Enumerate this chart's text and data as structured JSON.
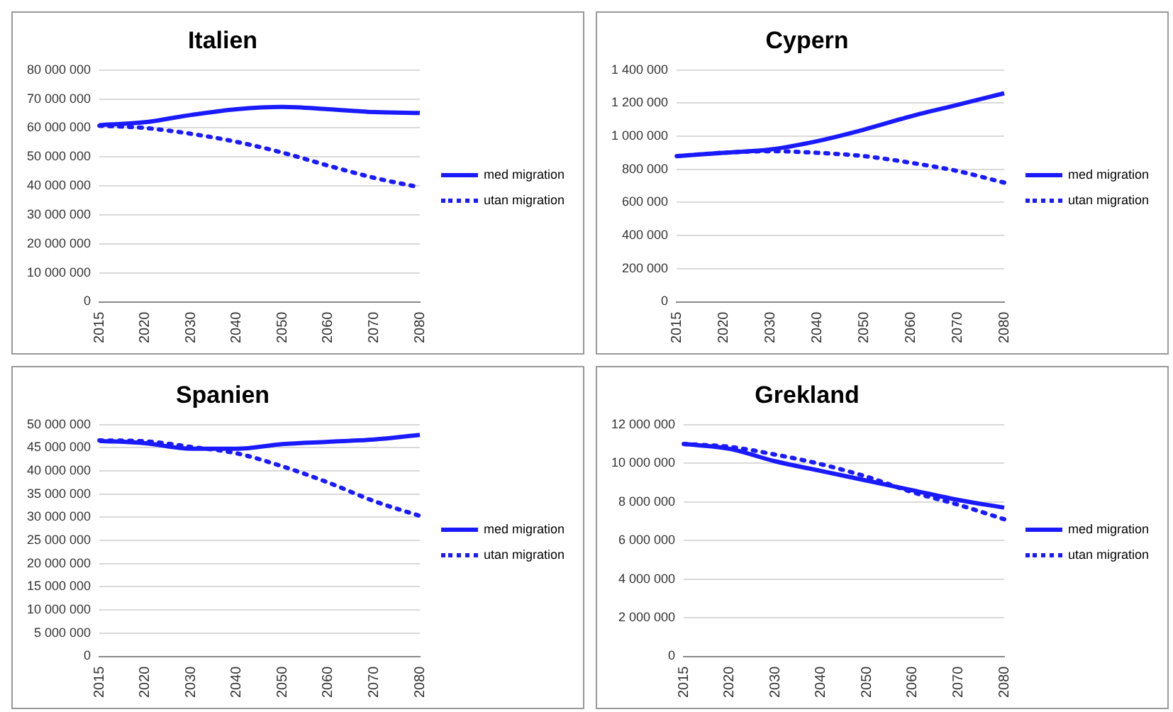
{
  "chart_data": [
    {
      "type": "line",
      "title": "Italien",
      "categories": [
        "2015",
        "2020",
        "2030",
        "2040",
        "2050",
        "2060",
        "2070",
        "2080"
      ],
      "series": [
        {
          "name": "med migration",
          "color": "#1a1aff",
          "line_style": "solid",
          "values": [
            61000000,
            62000000,
            64500000,
            66500000,
            67300000,
            66500000,
            65500000,
            65200000
          ]
        },
        {
          "name": "utan migration",
          "color": "#1a1aff",
          "line_style": "dotted",
          "values": [
            60800000,
            60000000,
            58000000,
            55200000,
            51500000,
            47000000,
            42800000,
            39500000
          ]
        }
      ],
      "ylim": [
        0,
        80000000
      ],
      "yticks": [
        {
          "value": 0,
          "label": "0"
        },
        {
          "value": 10000000,
          "label": "10 000 000"
        },
        {
          "value": 20000000,
          "label": "20 000 000"
        },
        {
          "value": 30000000,
          "label": "30 000 000"
        },
        {
          "value": 40000000,
          "label": "40 000 000"
        },
        {
          "value": 50000000,
          "label": "50 000 000"
        },
        {
          "value": 60000000,
          "label": "60 000 000"
        },
        {
          "value": 70000000,
          "label": "70 000 000"
        },
        {
          "value": 80000000,
          "label": "80 000 000"
        }
      ],
      "grid": "y",
      "legend": "right",
      "marker": "none"
    },
    {
      "type": "line",
      "title": "Cypern",
      "categories": [
        "2015",
        "2020",
        "2030",
        "2040",
        "2050",
        "2060",
        "2070",
        "2080"
      ],
      "series": [
        {
          "name": "med migration",
          "color": "#1a1aff",
          "line_style": "solid",
          "values": [
            880000,
            900000,
            920000,
            970000,
            1040000,
            1120000,
            1190000,
            1260000
          ]
        },
        {
          "name": "utan migration",
          "color": "#1a1aff",
          "line_style": "dotted",
          "values": [
            880000,
            900000,
            910000,
            900000,
            880000,
            840000,
            790000,
            720000
          ]
        }
      ],
      "ylim": [
        0,
        1400000
      ],
      "yticks": [
        {
          "value": 0,
          "label": "0"
        },
        {
          "value": 200000,
          "label": "200 000"
        },
        {
          "value": 400000,
          "label": "400 000"
        },
        {
          "value": 600000,
          "label": "600 000"
        },
        {
          "value": 800000,
          "label": "800 000"
        },
        {
          "value": 1000000,
          "label": "1 000 000"
        },
        {
          "value": 1200000,
          "label": "1 200 000"
        },
        {
          "value": 1400000,
          "label": "1 400 000"
        }
      ],
      "grid": "y",
      "legend": "right",
      "marker": "none"
    },
    {
      "type": "line",
      "title": "Spanien",
      "categories": [
        "2015",
        "2020",
        "2030",
        "2040",
        "2050",
        "2060",
        "2070",
        "2080"
      ],
      "series": [
        {
          "name": "med migration",
          "color": "#1a1aff",
          "line_style": "solid",
          "values": [
            46500000,
            46000000,
            44800000,
            44800000,
            45800000,
            46300000,
            46800000,
            47800000
          ]
        },
        {
          "name": "utan migration",
          "color": "#1a1aff",
          "line_style": "dotted",
          "values": [
            46600000,
            46400000,
            45200000,
            43800000,
            41000000,
            37500000,
            33500000,
            30300000
          ]
        }
      ],
      "ylim": [
        0,
        50000000
      ],
      "yticks": [
        {
          "value": 0,
          "label": "0"
        },
        {
          "value": 5000000,
          "label": "5 000 000"
        },
        {
          "value": 10000000,
          "label": "10 000 000"
        },
        {
          "value": 15000000,
          "label": "15 000 000"
        },
        {
          "value": 20000000,
          "label": "20 000 000"
        },
        {
          "value": 25000000,
          "label": "25 000 000"
        },
        {
          "value": 30000000,
          "label": "30 000 000"
        },
        {
          "value": 35000000,
          "label": "35 000 000"
        },
        {
          "value": 40000000,
          "label": "40 000 000"
        },
        {
          "value": 45000000,
          "label": "45 000 000"
        },
        {
          "value": 50000000,
          "label": "50 000 000"
        }
      ],
      "grid": "y",
      "legend": "right",
      "marker": "none"
    },
    {
      "type": "line",
      "title": "Grekland",
      "categories": [
        "2015",
        "2020",
        "2030",
        "2040",
        "2050",
        "2060",
        "2070",
        "2080"
      ],
      "series": [
        {
          "name": "med migration",
          "color": "#1a1aff",
          "line_style": "solid",
          "values": [
            11000000,
            10750000,
            10100000,
            9600000,
            9100000,
            8600000,
            8100000,
            7700000
          ]
        },
        {
          "name": "utan migration",
          "color": "#1a1aff",
          "line_style": "dotted",
          "values": [
            11000000,
            10850000,
            10450000,
            9950000,
            9300000,
            8500000,
            7850000,
            7100000
          ]
        }
      ],
      "ylim": [
        0,
        12000000
      ],
      "yticks": [
        {
          "value": 0,
          "label": "0"
        },
        {
          "value": 2000000,
          "label": "2 000 000"
        },
        {
          "value": 4000000,
          "label": "4 000 000"
        },
        {
          "value": 6000000,
          "label": "6 000 000"
        },
        {
          "value": 8000000,
          "label": "8 000 000"
        },
        {
          "value": 10000000,
          "label": "10 000 000"
        },
        {
          "value": 12000000,
          "label": "12 000 000"
        }
      ],
      "grid": "y",
      "legend": "right",
      "marker": "none"
    }
  ]
}
